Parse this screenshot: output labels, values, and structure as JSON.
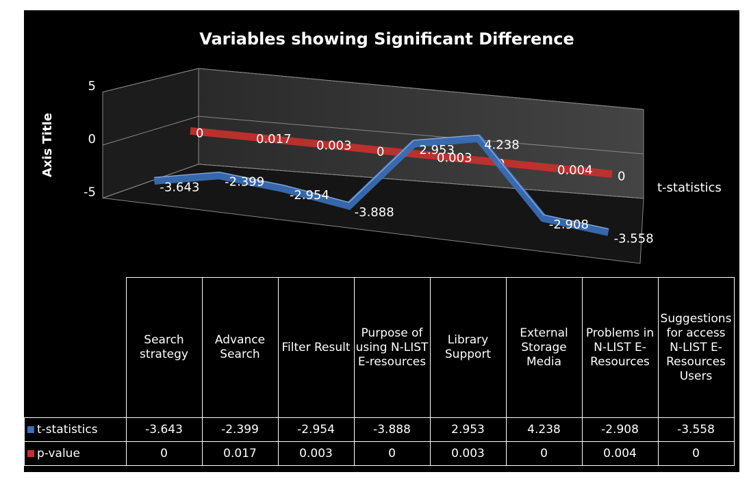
{
  "chart_data": {
    "type": "line3d",
    "title": "Variables showing Significant Difference",
    "y_axis_title": "Axis Title",
    "depth_axis_label": "t-statistics",
    "categories": [
      "Search strategy",
      "Advance Search",
      "Filter Result",
      "Purpose of using N-LIST E-resources",
      "Library Support",
      "External Storage Media",
      "Problems in N-LIST E-Resources",
      "Suggestions for access N-LIST E-Resources Users"
    ],
    "series": [
      {
        "name": "t-statistics",
        "color": "#3a6fb8",
        "values": [
          -3.643,
          -2.399,
          -2.954,
          -3.888,
          2.953,
          4.238,
          -2.908,
          -3.558
        ]
      },
      {
        "name": "p-value",
        "color": "#c8302c",
        "values": [
          0,
          0.017,
          0.003,
          0,
          0.003,
          0,
          0.004,
          0
        ]
      }
    ],
    "ylim": [
      -5,
      5
    ],
    "yticks": [
      -5,
      0,
      5
    ],
    "grid": true
  }
}
